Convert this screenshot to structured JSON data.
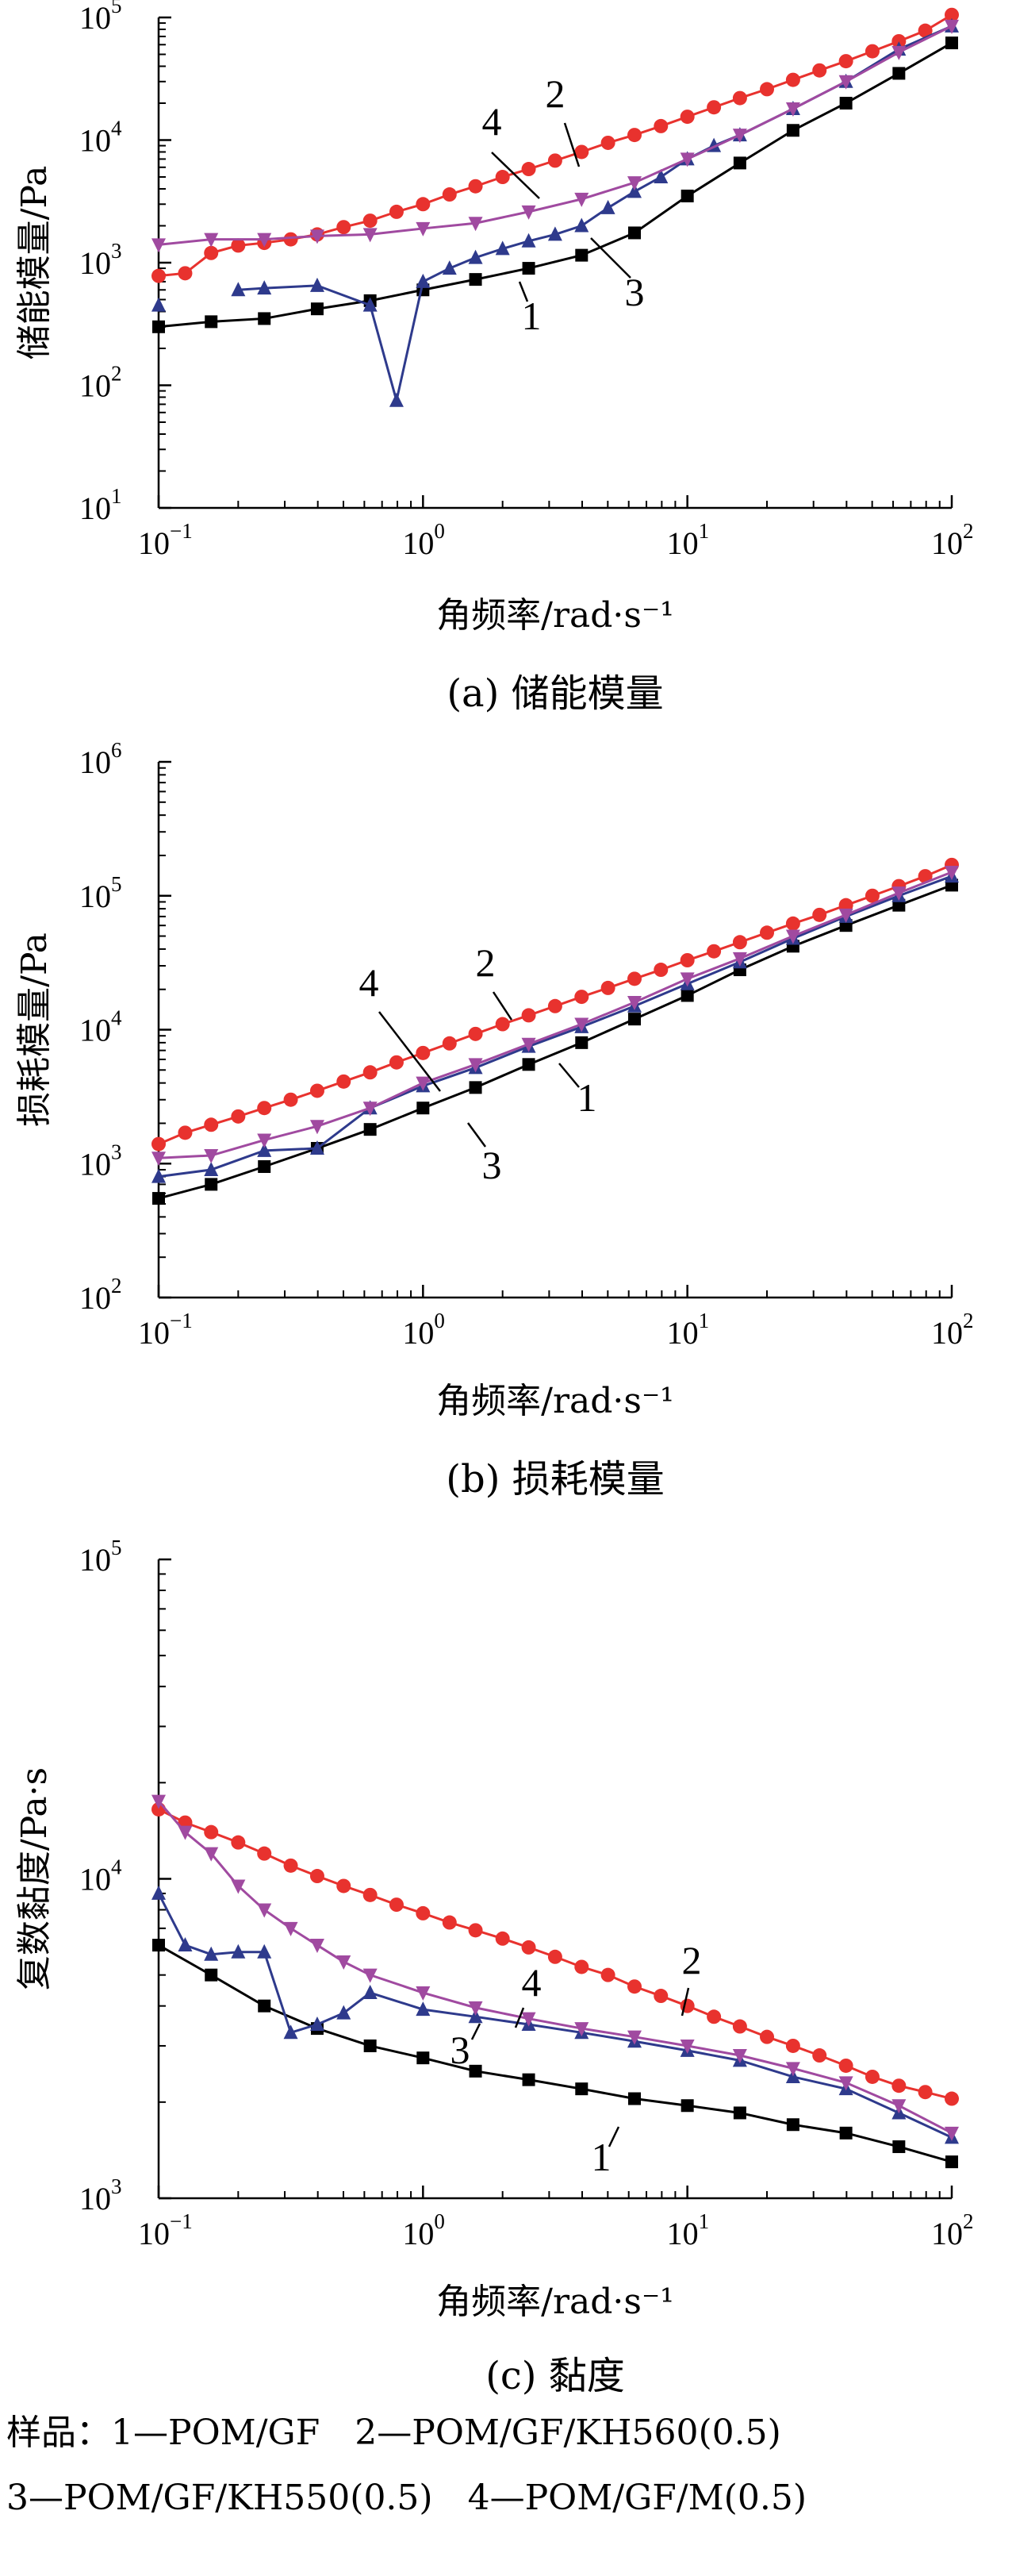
{
  "chart_data": [
    {
      "type": "line",
      "title": "",
      "caption": "(a) 储能模量",
      "xlabel": "角频率/rad·s⁻¹",
      "ylabel": "储能模量/Pa",
      "xscale": "log",
      "yscale": "log",
      "xlim": [
        0.1,
        100
      ],
      "ylim": [
        10,
        100000
      ],
      "xticks": [
        "10⁻¹",
        "10⁰",
        "10¹",
        "10²"
      ],
      "yticks": [
        "10¹",
        "10²",
        "10³",
        "10⁴",
        "10⁵"
      ],
      "grid": false,
      "series": [
        {
          "name": "1",
          "color": "#000000",
          "marker": "square",
          "x": [
            0.1,
            0.158,
            0.251,
            0.398,
            0.631,
            1,
            1.58,
            2.51,
            3.98,
            6.31,
            10,
            15.8,
            25.1,
            39.8,
            63.1,
            100
          ],
          "y": [
            300,
            330,
            350,
            420,
            490,
            600,
            730,
            900,
            1150,
            1750,
            3500,
            6500,
            12000,
            20000,
            35000,
            62000
          ]
        },
        {
          "name": "2",
          "color": "#e8322e",
          "marker": "circle",
          "x": [
            0.1,
            0.126,
            0.158,
            0.2,
            0.251,
            0.316,
            0.398,
            0.501,
            0.631,
            0.794,
            1,
            1.26,
            1.58,
            2,
            2.51,
            3.16,
            3.98,
            5.01,
            6.31,
            7.94,
            10,
            12.6,
            15.8,
            20,
            25.1,
            31.6,
            39.8,
            50.1,
            63.1,
            79.4,
            100
          ],
          "y": [
            780,
            820,
            1200,
            1380,
            1450,
            1550,
            1700,
            1950,
            2200,
            2600,
            3000,
            3600,
            4200,
            5000,
            5800,
            6800,
            8000,
            9500,
            11000,
            13000,
            15500,
            18500,
            22000,
            26000,
            31000,
            37000,
            44000,
            53000,
            64000,
            78000,
            105000
          ]
        },
        {
          "name": "3",
          "color": "#2e3a8c",
          "marker": "triangle-up",
          "x": [
            0.1,
            0.158,
            0.2,
            0.251,
            0.398,
            0.631,
            0.794,
            1,
            1.26,
            1.58,
            2,
            2.51,
            3.16,
            3.98,
            5.01,
            6.31,
            7.94,
            10,
            12.6,
            15.8,
            25.1,
            39.8,
            63.1,
            100
          ],
          "y": [
            450,
            null,
            600,
            620,
            650,
            450,
            75,
            700,
            900,
            1100,
            1300,
            1500,
            1700,
            2000,
            2800,
            3800,
            5000,
            7000,
            9000,
            11000,
            18000,
            30000,
            55000,
            85000
          ]
        },
        {
          "name": "4",
          "color": "#a04aa0",
          "marker": "triangle-down",
          "x": [
            0.1,
            0.158,
            0.251,
            0.398,
            0.631,
            1,
            1.58,
            2.51,
            3.98,
            6.31,
            10,
            15.8,
            25.1,
            39.8,
            63.1,
            100
          ],
          "y": [
            1400,
            1550,
            1550,
            1650,
            1700,
            1900,
            2100,
            2600,
            3300,
            4500,
            7000,
            11000,
            18000,
            30000,
            52000,
            85000
          ]
        }
      ],
      "callouts": [
        "4",
        "2",
        "3",
        "1"
      ]
    },
    {
      "type": "line",
      "title": "",
      "caption": "(b) 损耗模量",
      "xlabel": "角频率/rad·s⁻¹",
      "ylabel": "损耗模量/Pa",
      "xscale": "log",
      "yscale": "log",
      "xlim": [
        0.1,
        100
      ],
      "ylim": [
        100,
        1000000
      ],
      "xticks": [
        "10⁻¹",
        "10⁰",
        "10¹",
        "10²"
      ],
      "yticks": [
        "10²",
        "10³",
        "10⁴",
        "10⁵",
        "10⁶"
      ],
      "grid": false,
      "series": [
        {
          "name": "1",
          "color": "#000000",
          "marker": "square",
          "x": [
            0.1,
            0.158,
            0.251,
            0.398,
            0.631,
            1,
            1.58,
            2.51,
            3.98,
            6.31,
            10,
            15.8,
            25.1,
            39.8,
            63.1,
            100
          ],
          "y": [
            550,
            700,
            950,
            1300,
            1800,
            2600,
            3700,
            5500,
            8000,
            12000,
            18000,
            28000,
            42000,
            60000,
            85000,
            120000
          ]
        },
        {
          "name": "2",
          "color": "#e8322e",
          "marker": "circle",
          "x": [
            0.1,
            0.126,
            0.158,
            0.2,
            0.251,
            0.316,
            0.398,
            0.501,
            0.631,
            0.794,
            1,
            1.26,
            1.58,
            2,
            2.51,
            3.16,
            3.98,
            5.01,
            6.31,
            7.94,
            10,
            12.6,
            15.8,
            20,
            25.1,
            31.6,
            39.8,
            50.1,
            63.1,
            79.4,
            100
          ],
          "y": [
            1400,
            1700,
            1950,
            2250,
            2600,
            3000,
            3500,
            4100,
            4800,
            5700,
            6700,
            7900,
            9300,
            11000,
            12800,
            15000,
            17600,
            20500,
            24000,
            28000,
            33000,
            38500,
            45000,
            53000,
            62000,
            72000,
            85000,
            100000,
            118000,
            140000,
            170000
          ]
        },
        {
          "name": "3",
          "color": "#2e3a8c",
          "marker": "triangle-up",
          "x": [
            0.1,
            0.158,
            0.251,
            0.398,
            0.631,
            1,
            1.58,
            2.51,
            3.98,
            6.31,
            10,
            15.8,
            25.1,
            39.8,
            63.1,
            100
          ],
          "y": [
            800,
            900,
            1250,
            1300,
            2600,
            3800,
            5200,
            7500,
            10500,
            15000,
            22000,
            32000,
            48000,
            70000,
            100000,
            140000
          ]
        },
        {
          "name": "4",
          "color": "#a04aa0",
          "marker": "triangle-down",
          "x": [
            0.1,
            0.158,
            0.251,
            0.398,
            0.631,
            1,
            1.58,
            2.51,
            3.98,
            6.31,
            10,
            15.8,
            25.1,
            39.8,
            63.1,
            100
          ],
          "y": [
            1100,
            1150,
            1500,
            1900,
            2600,
            4000,
            5500,
            7800,
            11000,
            16000,
            24000,
            34000,
            50000,
            72000,
            105000,
            150000
          ]
        }
      ],
      "callouts": [
        "4",
        "2",
        "3",
        "1"
      ]
    },
    {
      "type": "line",
      "title": "",
      "caption": "(c) 黏度",
      "xlabel": "角频率/rad·s⁻¹",
      "ylabel": "复数黏度/Pa·s",
      "xscale": "log",
      "yscale": "log",
      "xlim": [
        0.1,
        100
      ],
      "ylim": [
        1000,
        100000
      ],
      "xticks": [
        "10⁻¹",
        "10⁰",
        "10¹",
        "10²"
      ],
      "yticks": [
        "10³",
        "10⁴",
        "10⁵"
      ],
      "grid": false,
      "series": [
        {
          "name": "1",
          "color": "#000000",
          "marker": "square",
          "x": [
            0.1,
            0.158,
            0.251,
            0.398,
            0.631,
            1,
            1.58,
            2.51,
            3.98,
            6.31,
            10,
            15.8,
            25.1,
            39.8,
            63.1,
            100
          ],
          "y": [
            6200,
            5000,
            4000,
            3400,
            3000,
            2750,
            2500,
            2350,
            2200,
            2050,
            1950,
            1850,
            1700,
            1600,
            1450,
            1300
          ]
        },
        {
          "name": "2",
          "color": "#e8322e",
          "marker": "circle",
          "x": [
            0.1,
            0.126,
            0.158,
            0.2,
            0.251,
            0.316,
            0.398,
            0.501,
            0.631,
            0.794,
            1,
            1.26,
            1.58,
            2,
            2.51,
            3.16,
            3.98,
            5.01,
            6.31,
            7.94,
            10,
            12.6,
            15.8,
            20,
            25.1,
            31.6,
            39.8,
            50.1,
            63.1,
            79.4,
            100
          ],
          "y": [
            16500,
            15000,
            14000,
            13000,
            12000,
            11000,
            10200,
            9500,
            8900,
            8300,
            7800,
            7300,
            6900,
            6500,
            6100,
            5700,
            5300,
            5000,
            4600,
            4300,
            4000,
            3700,
            3450,
            3200,
            3000,
            2800,
            2600,
            2400,
            2250,
            2150,
            2050
          ]
        },
        {
          "name": "3",
          "color": "#2e3a8c",
          "marker": "triangle-up",
          "x": [
            0.1,
            0.126,
            0.158,
            0.2,
            0.251,
            0.316,
            0.398,
            0.501,
            0.631,
            1,
            1.58,
            2.51,
            3.98,
            6.31,
            10,
            15.8,
            25.1,
            39.8,
            63.1,
            100
          ],
          "y": [
            9000,
            6200,
            5800,
            5900,
            5900,
            3300,
            3500,
            3800,
            4400,
            3900,
            3700,
            3500,
            3300,
            3100,
            2900,
            2700,
            2400,
            2200,
            1850,
            1550
          ]
        },
        {
          "name": "4",
          "color": "#a04aa0",
          "marker": "triangle-down",
          "x": [
            0.1,
            0.126,
            0.158,
            0.2,
            0.251,
            0.316,
            0.398,
            0.501,
            0.631,
            1,
            1.58,
            2.51,
            3.98,
            6.31,
            10,
            15.8,
            25.1,
            39.8,
            63.1,
            100
          ],
          "y": [
            17500,
            14000,
            12000,
            9500,
            8000,
            7000,
            6200,
            5500,
            5000,
            4400,
            3950,
            3650,
            3400,
            3200,
            3000,
            2800,
            2550,
            2300,
            1950,
            1600
          ]
        }
      ],
      "callouts": [
        "2",
        "4",
        "3",
        "1"
      ]
    }
  ],
  "legend": {
    "line1": "样品：1—POM/GF　2—POM/GF/KH560(0.5)",
    "line2": "3—POM/GF/KH550(0.5)　4—POM/GF/M(0.5)"
  }
}
